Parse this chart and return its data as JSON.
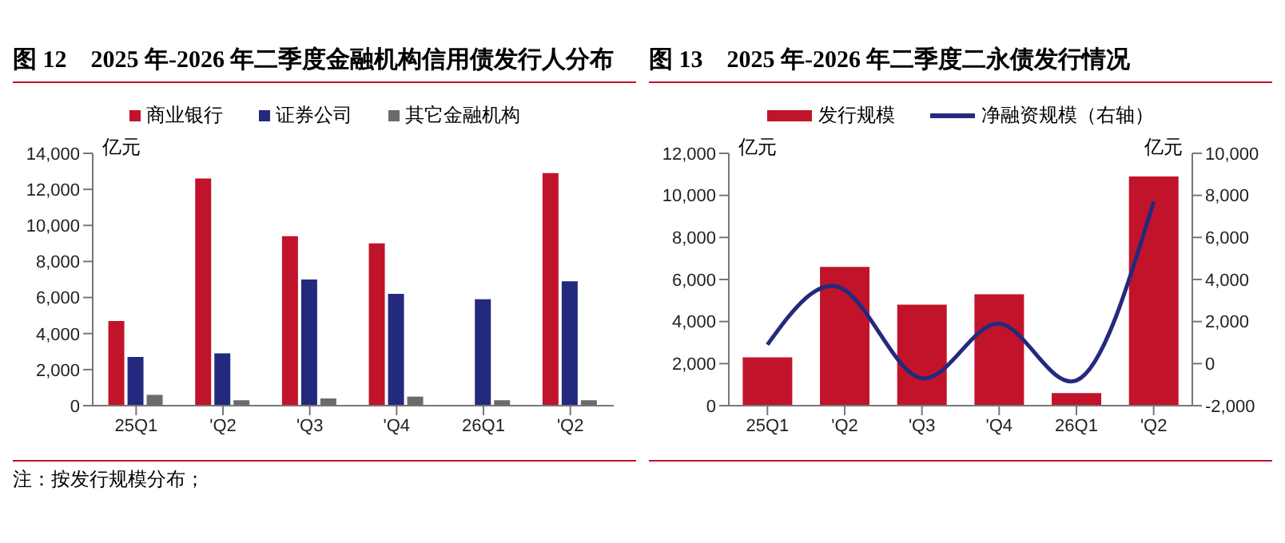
{
  "chart_data": [
    {
      "type": "bar",
      "title": "图 12　2025 年-2026 年二季度金融机构信用债发行人分布",
      "ylabel": "亿元",
      "categories": [
        "25Q1",
        "'Q2",
        "'Q3",
        "'Q4",
        "26Q1",
        "'Q2"
      ],
      "series": [
        {
          "name": "商业银行",
          "color": "#c1142b",
          "values": [
            4700,
            12600,
            9400,
            9000,
            0,
            12900
          ]
        },
        {
          "name": "证券公司",
          "color": "#232a7e",
          "values": [
            2700,
            2900,
            7000,
            6200,
            5900,
            6900
          ]
        },
        {
          "name": "其它金融机构",
          "color": "#6b6b6b",
          "values": [
            600,
            300,
            400,
            500,
            300,
            300
          ]
        }
      ],
      "ylim": [
        0,
        14000
      ],
      "yticks": [
        0,
        {
          "value": 2000,
          "label": "2,000"
        },
        {
          "value": 4000,
          "label": "4,000"
        },
        {
          "value": 6000,
          "label": "6,000"
        },
        {
          "value": 8000,
          "label": "8,000"
        },
        {
          "value": 10000,
          "label": "10,000"
        },
        {
          "value": 12000,
          "label": "12,000"
        },
        {
          "value": 14000,
          "label": "14,000"
        }
      ],
      "legend": "top",
      "annotations": [
        "注：按发行规模分布；"
      ]
    },
    {
      "type": "bar",
      "title": "图 13　2025 年-2026 年二季度二永债发行情况",
      "ylabel": "亿元",
      "y2label": "亿元",
      "categories": [
        "25Q1",
        "'Q2",
        "'Q3",
        "'Q4",
        "26Q1",
        "'Q2"
      ],
      "series": [
        {
          "name": "发行规模",
          "color": "#c1142b",
          "values": [
            2300,
            6600,
            4800,
            5300,
            600,
            10900
          ]
        },
        {
          "name": "净融资规模（右轴）",
          "type": "line",
          "axis": "y2",
          "color": "#232a7e",
          "values": [
            900,
            3500,
            -700,
            1900,
            -800,
            7700
          ]
        }
      ],
      "ylim": [
        0,
        12000
      ],
      "yticks": [
        0,
        {
          "value": 2000,
          "label": "2,000"
        },
        {
          "value": 4000,
          "label": "4,000"
        },
        {
          "value": 6000,
          "label": "6,000"
        },
        {
          "value": 8000,
          "label": "8,000"
        },
        {
          "value": 10000,
          "label": "10,000"
        },
        {
          "value": 12000,
          "label": "12,000"
        }
      ],
      "y2lim": [
        -2000,
        10000
      ],
      "y2ticks": [
        {
          "value": -2000,
          "label": "-2,000"
        },
        0,
        {
          "value": 2000,
          "label": "2,000"
        },
        {
          "value": 4000,
          "label": "4,000"
        },
        {
          "value": 6000,
          "label": "6,000"
        },
        {
          "value": 8000,
          "label": "8,000"
        },
        {
          "value": 10000,
          "label": "10,000"
        }
      ],
      "legend": "top"
    }
  ]
}
